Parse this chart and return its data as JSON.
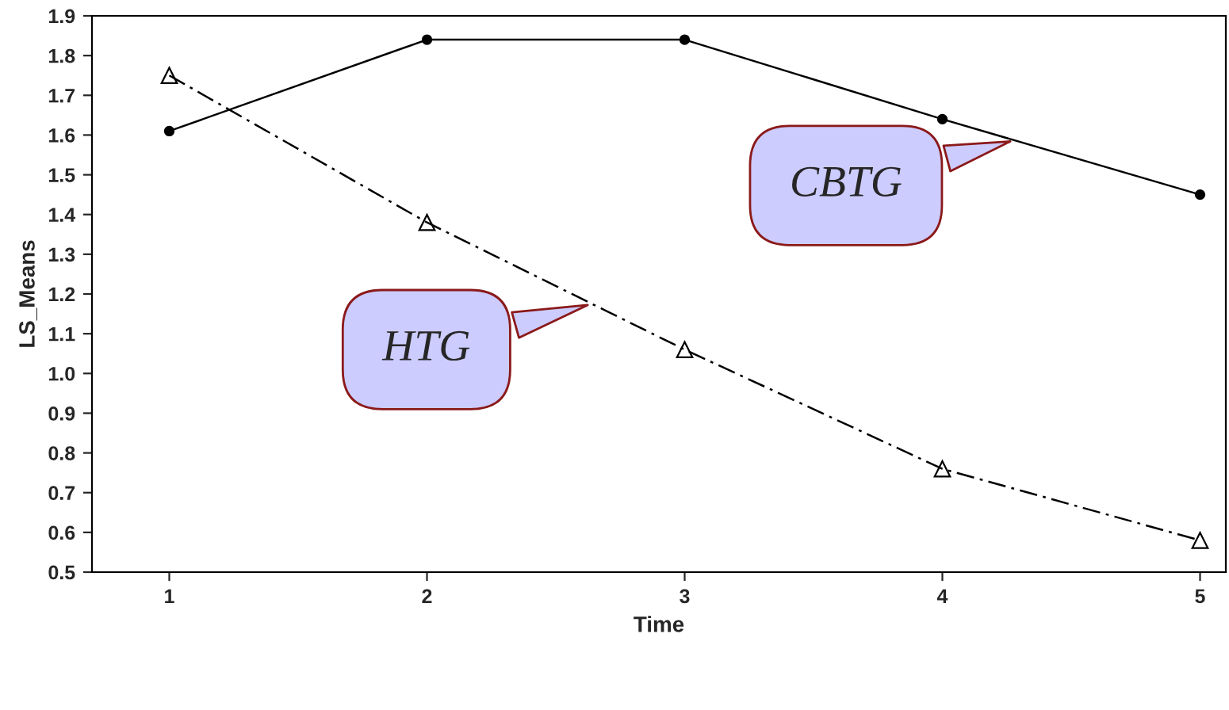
{
  "chart_data": {
    "type": "line",
    "xlabel": "Time",
    "ylabel": "LS_Means",
    "x": [
      1,
      2,
      3,
      4,
      5
    ],
    "series": [
      {
        "name": "CBTG",
        "color": "#000000",
        "marker": "circle",
        "line_style": "solid",
        "values": [
          1.61,
          1.84,
          1.84,
          1.64,
          1.45
        ]
      },
      {
        "name": "HTG",
        "color": "#000000",
        "marker": "triangle",
        "line_style": "dashed",
        "values": [
          1.75,
          1.38,
          1.06,
          0.76,
          0.58
        ]
      }
    ],
    "xlim": [
      0.7,
      5.1
    ],
    "ylim": [
      0.5,
      1.9
    ],
    "xticks": [
      1,
      2,
      3,
      4,
      5
    ],
    "yticks": [
      {
        "value": 0.5,
        "label": "0.5"
      },
      {
        "value": 0.6,
        "label": "0.6"
      },
      {
        "value": 0.7,
        "label": "0.7"
      },
      {
        "value": 0.8,
        "label": "0.8"
      },
      {
        "value": 0.9,
        "label": "0.9"
      },
      {
        "value": 1.0,
        "label": "1.0"
      },
      {
        "value": 1.1,
        "label": "1.1"
      },
      {
        "value": 1.2,
        "label": "1.2"
      },
      {
        "value": 1.3,
        "label": "1.3"
      },
      {
        "value": 1.4,
        "label": "1.4"
      },
      {
        "value": 1.5,
        "label": "1.5"
      },
      {
        "value": 1.6,
        "label": "1.6"
      },
      {
        "value": 1.7,
        "label": "1.7"
      },
      {
        "value": 1.8,
        "label": "1.8"
      },
      {
        "value": 1.9,
        "label": "1.9"
      }
    ],
    "grid": false,
    "legend": false
  }
}
